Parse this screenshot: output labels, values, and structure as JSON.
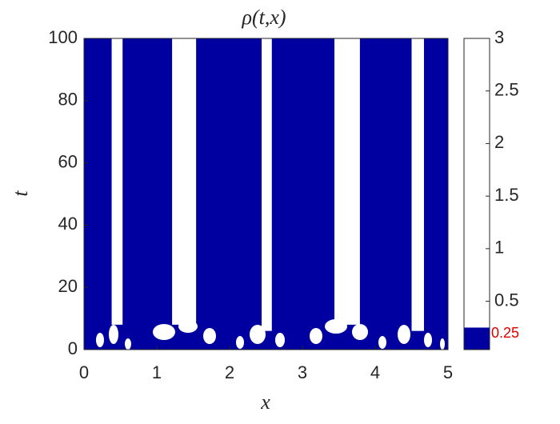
{
  "chart_data": {
    "type": "heatmap",
    "title": "ρ(t,x)",
    "x_label": "x",
    "y_label": "t",
    "xlim": [
      0,
      5
    ],
    "ylim": [
      0,
      100
    ],
    "xticks": [
      0,
      1,
      2,
      3,
      4,
      5
    ],
    "yticks": [
      0,
      20,
      40,
      60,
      80,
      100
    ],
    "low_color": "#0000a0",
    "high_color": "#ffffff",
    "bands": [
      {
        "x": [
          0.38,
          0.53
        ],
        "t": [
          8,
          100
        ]
      },
      {
        "x": [
          1.21,
          1.54
        ],
        "t": [
          8,
          100
        ]
      },
      {
        "x": [
          2.44,
          2.58
        ],
        "t": [
          6,
          100
        ]
      },
      {
        "x": [
          3.44,
          3.79
        ],
        "t": [
          8,
          100
        ]
      },
      {
        "x": [
          4.5,
          4.67
        ],
        "t": [
          6,
          100
        ]
      }
    ],
    "colorbar": {
      "lim": [
        0.04,
        3
      ],
      "ticks": [
        0.5,
        1,
        1.5,
        2,
        2.5,
        3
      ],
      "threshold": 0.25,
      "threshold_color": "#e00000"
    }
  }
}
